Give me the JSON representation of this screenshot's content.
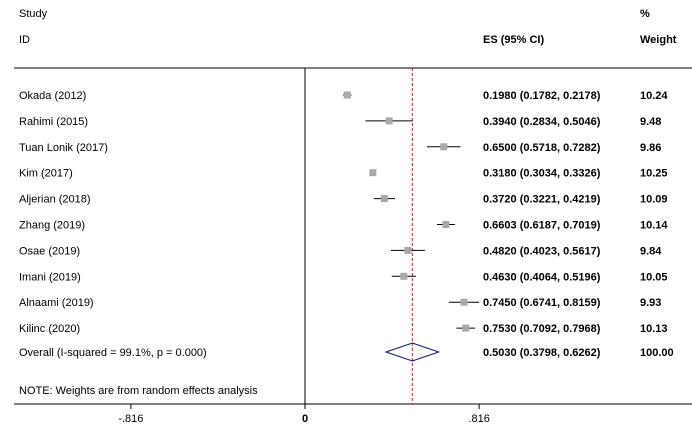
{
  "chart_data": {
    "type": "forest",
    "headers": {
      "study_line1": "Study",
      "study_line2": "ID",
      "es": "ES (95% CI)",
      "weight_line1": "%",
      "weight_line2": "Weight"
    },
    "studies": [
      {
        "label": "Okada (2012)",
        "es": 0.198,
        "lo": 0.1782,
        "hi": 0.2178,
        "es_text": "0.1980 (0.1782, 0.2178)",
        "weight": "10.24"
      },
      {
        "label": "Rahimi (2015)",
        "es": 0.394,
        "lo": 0.2834,
        "hi": 0.5046,
        "es_text": "0.3940 (0.2834, 0.5046)",
        "weight": "9.48"
      },
      {
        "label": "Tuan Lonik (2017)",
        "es": 0.65,
        "lo": 0.5718,
        "hi": 0.7282,
        "es_text": "0.6500 (0.5718, 0.7282)",
        "weight": "9.86"
      },
      {
        "label": "Kim (2017)",
        "es": 0.318,
        "lo": 0.3034,
        "hi": 0.3326,
        "es_text": "0.3180 (0.3034, 0.3326)",
        "weight": "10.25"
      },
      {
        "label": "Aljerian (2018)",
        "es": 0.372,
        "lo": 0.3221,
        "hi": 0.4219,
        "es_text": "0.3720 (0.3221, 0.4219)",
        "weight": "10.09"
      },
      {
        "label": "Zhang (2019)",
        "es": 0.6603,
        "lo": 0.6187,
        "hi": 0.7019,
        "es_text": "0.6603 (0.6187, 0.7019)",
        "weight": "10.14"
      },
      {
        "label": "Osae (2019)",
        "es": 0.482,
        "lo": 0.4023,
        "hi": 0.5617,
        "es_text": "0.4820 (0.4023, 0.5617)",
        "weight": "9.84"
      },
      {
        "label": "Imani (2019)",
        "es": 0.463,
        "lo": 0.4064,
        "hi": 0.5196,
        "es_text": "0.4630 (0.4064, 0.5196)",
        "weight": "10.05"
      },
      {
        "label": "Alnaami (2019)",
        "es": 0.745,
        "lo": 0.6741,
        "hi": 0.8159,
        "es_text": "0.7450 (0.6741, 0.8159)",
        "weight": "9.93"
      },
      {
        "label": "Kilinc (2020)",
        "es": 0.753,
        "lo": 0.7092,
        "hi": 0.7968,
        "es_text": "0.7530 (0.7092, 0.7968)",
        "weight": "10.13"
      }
    ],
    "overall": {
      "label": "Overall  (I-squared = 99.1%, p = 0.000)",
      "es": 0.503,
      "lo": 0.3798,
      "hi": 0.6262,
      "es_text": "0.5030 (0.3798, 0.6262)",
      "weight": "100.00"
    },
    "note": "NOTE: Weights are from random effects analysis",
    "xaxis": {
      "ticks": [
        -0.816,
        0,
        0.816
      ],
      "tick_labels": [
        "-.816",
        "0",
        ".816"
      ],
      "range": [
        -0.816,
        0.816
      ]
    },
    "null_line": 0,
    "colors": {
      "marker": "#a9a9a9",
      "ci_line": "#000000",
      "diamond": "#0d1170",
      "overall_line": "#b02a2a"
    }
  }
}
